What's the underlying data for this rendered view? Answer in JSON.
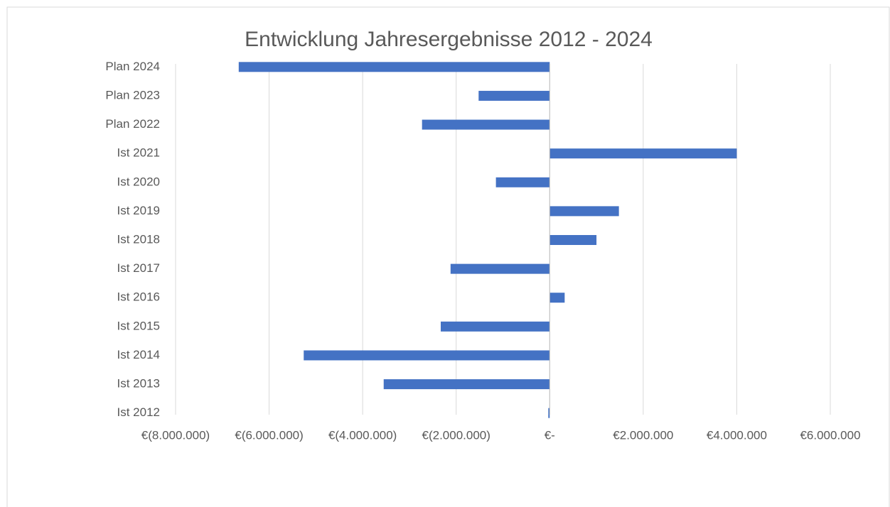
{
  "chart_data": {
    "type": "barh",
    "title": "Entwicklung Jahresergebnisse 2012 - 2024",
    "categories": [
      "Ist 2012",
      "Ist 2013",
      "Ist 2014",
      "Ist 2015",
      "Ist 2016",
      "Ist 2017",
      "Ist 2018",
      "Ist 2019",
      "Ist 2020",
      "Ist 2021",
      "Plan 2022",
      "Plan 2023",
      "Plan 2024"
    ],
    "values": [
      -30000,
      -3550000,
      -5260000,
      -2330000,
      320000,
      -2120000,
      1000000,
      1480000,
      -1150000,
      4000000,
      -2730000,
      -1520000,
      -6650000
    ],
    "color": "#4472c4",
    "xlim": [
      -8000000,
      6000000
    ],
    "xticks": [
      {
        "value": -8000000,
        "label": "€(8.000.000)"
      },
      {
        "value": -6000000,
        "label": "€(6.000.000)"
      },
      {
        "value": -4000000,
        "label": "€(4.000.000)"
      },
      {
        "value": -2000000,
        "label": "€(2.000.000)"
      },
      {
        "value": 0,
        "label": "€-"
      },
      {
        "value": 2000000,
        "label": "€2.000.000"
      },
      {
        "value": 4000000,
        "label": "€4.000.000"
      },
      {
        "value": 6000000,
        "label": "€6.000.000"
      }
    ],
    "grid": true
  }
}
